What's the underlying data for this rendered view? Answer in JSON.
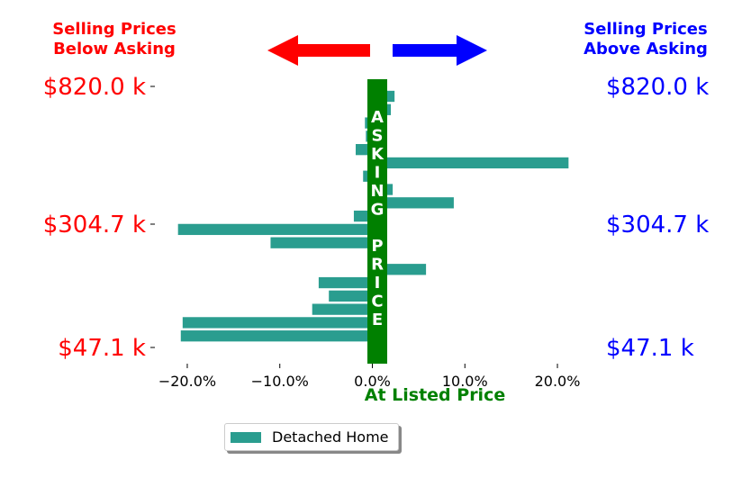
{
  "colors": {
    "bar": "#2a9d8f",
    "asking_band": "#008000",
    "below": "#ff0000",
    "above": "#0000ff",
    "listed": "#008000"
  },
  "headers": {
    "below_line1": "Selling Prices",
    "below_line2": "Below Asking",
    "above_line1": "Selling Prices",
    "above_line2": "Above Asking"
  },
  "band_label": "ASKING PRICE",
  "chart_data": {
    "type": "bar",
    "orientation": "horizontal",
    "xlabel": "At Listed Price",
    "xlim": [
      -0.235,
      0.235
    ],
    "x_ticks": [
      -0.2,
      -0.1,
      0,
      0.1,
      0.2
    ],
    "x_tick_labels": [
      "−20.0%",
      "−10.0%",
      "0.0%",
      "10.0%",
      "20.0%"
    ],
    "y_tick_labels": [
      "$820.0 k",
      "$304.7 k",
      "$47.1 k"
    ],
    "legend": "lower-left",
    "series": [
      {
        "name": "Detached Home",
        "values": [
          0.024,
          0.02,
          -0.008,
          -0.007,
          -0.018,
          0.212,
          -0.01,
          0.022,
          0.088,
          -0.02,
          -0.21,
          -0.11,
          0.005,
          0.058,
          -0.058,
          -0.047,
          -0.065,
          -0.205,
          -0.207,
          0.005
        ]
      }
    ]
  }
}
